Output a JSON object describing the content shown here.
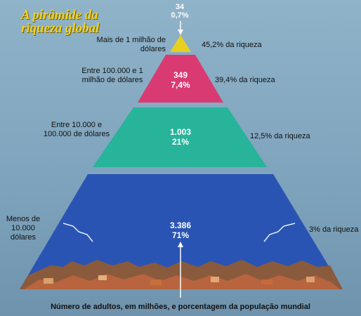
{
  "title": "A pirâmide da riqueza global",
  "tiers": [
    {
      "range": "Mais de 1 milhão de dólares",
      "adults_millions": "34",
      "population_share": "0,7%",
      "wealth_share": "45,2% da riqueza",
      "color": "#e8d020"
    },
    {
      "range": "Entre 100.000 e 1 milhão de dólares",
      "adults_millions": "349",
      "population_share": "7,4%",
      "wealth_share": "39,4% da riqueza",
      "color": "#d93a72"
    },
    {
      "range": "Entre 10.000 e 100.000 de dólares",
      "adults_millions": "1.003",
      "population_share": "21%",
      "wealth_share": "12,5% da riqueza",
      "color": "#27b49a"
    },
    {
      "range": "Menos de 10.000 dólares",
      "adults_millions": "3.386",
      "population_share": "71%",
      "wealth_share": "3% da riqueza",
      "color": "#2a54b4"
    }
  ],
  "footer": "Número de adultos, em milhões, e porcentagem da população mundial"
}
